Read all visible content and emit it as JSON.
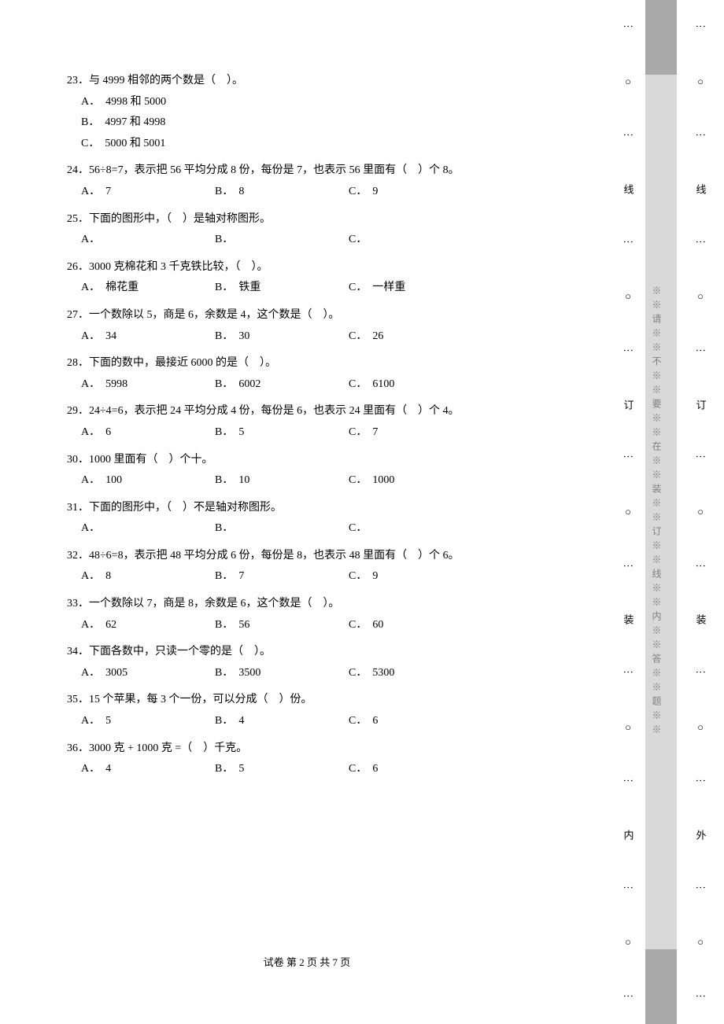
{
  "questions": [
    {
      "num": "23",
      "text": "．与 4999 相邻的两个数是（　）。",
      "opts": [
        {
          "l": "A．",
          "t": "4998 和 5000",
          "w": true
        },
        {
          "l": "B．",
          "t": "4997 和 4998",
          "w": true
        },
        {
          "l": "C．",
          "t": "5000 和 5001",
          "w": true
        }
      ]
    },
    {
      "num": "24",
      "text": "．56÷8=7，表示把 56 平均分成 8 份，每份是 7，也表示 56 里面有（　）个 8。",
      "opts": [
        {
          "l": "A．",
          "t": "7"
        },
        {
          "l": "B．",
          "t": "8"
        },
        {
          "l": "C．",
          "t": "9"
        }
      ]
    },
    {
      "num": "25",
      "text": "．下面的图形中，（　）是轴对称图形。",
      "opts": [
        {
          "l": "A．",
          "t": ""
        },
        {
          "l": "B．",
          "t": ""
        },
        {
          "l": "C．",
          "t": ""
        }
      ]
    },
    {
      "num": "26",
      "text": "．3000 克棉花和 3 千克铁比较，（　）。",
      "opts": [
        {
          "l": "A．",
          "t": "棉花重"
        },
        {
          "l": "B．",
          "t": "铁重"
        },
        {
          "l": "C．",
          "t": "一样重"
        }
      ]
    },
    {
      "num": "27",
      "text": "．一个数除以 5，商是 6，余数是 4，这个数是（　）。",
      "opts": [
        {
          "l": "A．",
          "t": "34"
        },
        {
          "l": "B．",
          "t": "30"
        },
        {
          "l": "C．",
          "t": "26"
        }
      ]
    },
    {
      "num": "28",
      "text": "．下面的数中，最接近 6000 的是（　）。",
      "opts": [
        {
          "l": "A．",
          "t": "5998"
        },
        {
          "l": "B．",
          "t": "6002"
        },
        {
          "l": "C．",
          "t": "6100"
        }
      ]
    },
    {
      "num": "29",
      "text": "．24÷4=6，表示把 24 平均分成 4 份，每份是 6，也表示 24 里面有（　）个 4。",
      "opts": [
        {
          "l": "A．",
          "t": "6"
        },
        {
          "l": "B．",
          "t": "5"
        },
        {
          "l": "C．",
          "t": "7"
        }
      ]
    },
    {
      "num": "30",
      "text": "．1000 里面有（　）个十。",
      "opts": [
        {
          "l": "A．",
          "t": "100"
        },
        {
          "l": "B．",
          "t": "10"
        },
        {
          "l": "C．",
          "t": "1000"
        }
      ]
    },
    {
      "num": "31",
      "text": "．下面的图形中，（　）不是轴对称图形。",
      "opts": [
        {
          "l": "A．",
          "t": ""
        },
        {
          "l": "B．",
          "t": ""
        },
        {
          "l": "C．",
          "t": ""
        }
      ]
    },
    {
      "num": "32",
      "text": "．48÷6=8，表示把 48 平均分成 6 份，每份是 8，也表示 48 里面有（　）个 6。",
      "opts": [
        {
          "l": "A．",
          "t": "8"
        },
        {
          "l": "B．",
          "t": "7"
        },
        {
          "l": "C．",
          "t": "9"
        }
      ]
    },
    {
      "num": "33",
      "text": "．一个数除以 7，商是 8，余数是 6，这个数是（　）。",
      "opts": [
        {
          "l": "A．",
          "t": "62"
        },
        {
          "l": "B．",
          "t": "56"
        },
        {
          "l": "C．",
          "t": "60"
        }
      ]
    },
    {
      "num": "34",
      "text": "．下面各数中，只读一个零的是（　）。",
      "opts": [
        {
          "l": "A．",
          "t": "3005"
        },
        {
          "l": "B．",
          "t": "3500"
        },
        {
          "l": "C．",
          "t": "5300"
        }
      ]
    },
    {
      "num": "35",
      "text": "．15 个苹果，每 3 个一份，可以分成（　）份。",
      "opts": [
        {
          "l": "A．",
          "t": "5"
        },
        {
          "l": "B．",
          "t": "4"
        },
        {
          "l": "C．",
          "t": "6"
        }
      ]
    },
    {
      "num": "36",
      "text": "．3000 克 + 1000 克 =（　）千克。",
      "opts": [
        {
          "l": "A．",
          "t": "4"
        },
        {
          "l": "B．",
          "t": "5"
        },
        {
          "l": "C．",
          "t": "6"
        }
      ]
    }
  ],
  "footer": "试卷 第 2 页 共 7 页",
  "margin": {
    "vertical_text": "※※请※※不※※要※※在※※装※※订※※线※※内※※答※※题※※",
    "dots": "⋮",
    "circle": "○",
    "chars_inner": [
      "线",
      "订",
      "装",
      "内"
    ],
    "chars_outer": [
      "线",
      "订",
      "装",
      "外"
    ]
  }
}
